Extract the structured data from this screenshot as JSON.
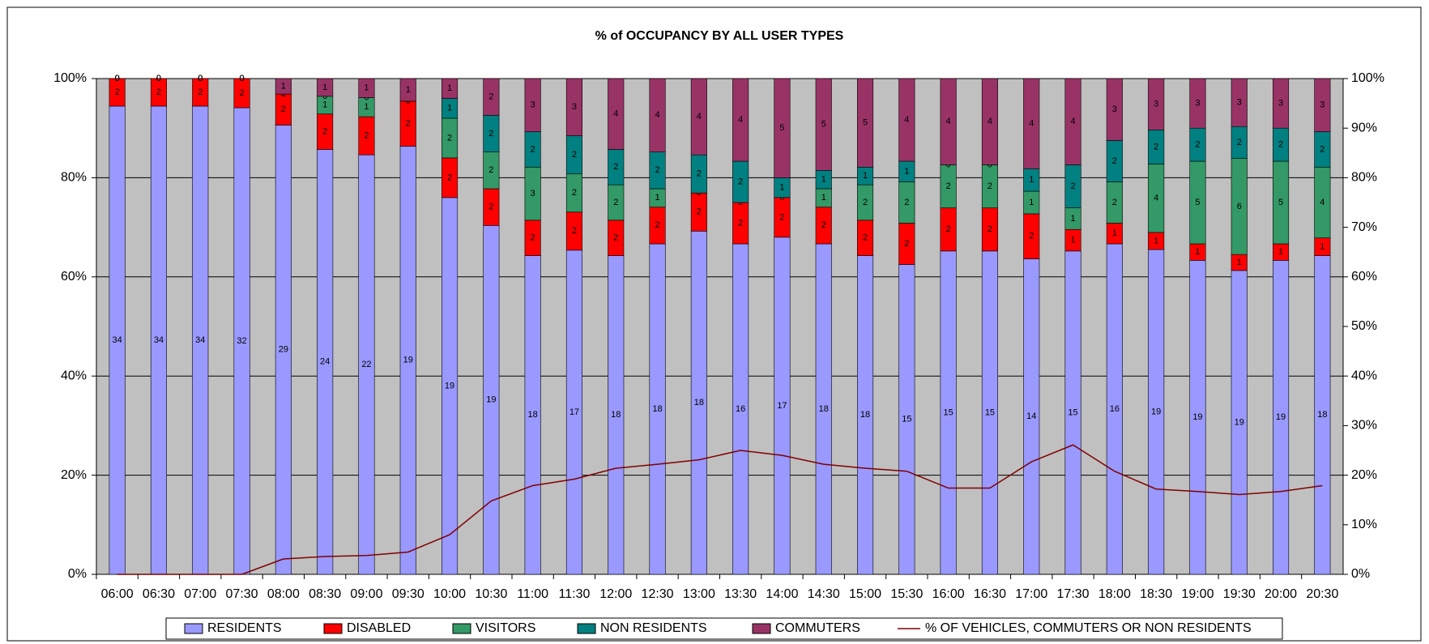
{
  "chart_data": {
    "type": "bar",
    "stacked": "percent",
    "title": "% of OCCUPANCY BY ALL USER TYPES",
    "categories": [
      "06:00",
      "06:30",
      "07:00",
      "07:30",
      "08:00",
      "08:30",
      "09:00",
      "09:30",
      "10:00",
      "10:30",
      "11:00",
      "11:30",
      "12:00",
      "12:30",
      "13:00",
      "13:30",
      "14:00",
      "14:30",
      "15:00",
      "15:30",
      "16:00",
      "16:30",
      "17:00",
      "17:30",
      "18:00",
      "18:30",
      "19:00",
      "19:30",
      "20:00",
      "20:30"
    ],
    "series": [
      {
        "name": "RESIDENTS",
        "color": "#9999ff",
        "values": [
          34,
          34,
          34,
          32,
          29,
          24,
          22,
          19,
          19,
          19,
          18,
          17,
          18,
          18,
          18,
          16,
          17,
          18,
          18,
          15,
          15,
          15,
          14,
          15,
          16,
          19,
          19,
          19,
          19,
          18
        ]
      },
      {
        "name": "DISABLED",
        "color": "#ff0000",
        "values": [
          2,
          2,
          2,
          2,
          2,
          2,
          2,
          2,
          2,
          2,
          2,
          2,
          2,
          2,
          2,
          2,
          2,
          2,
          2,
          2,
          2,
          2,
          2,
          1,
          1,
          1,
          1,
          1,
          1,
          1
        ]
      },
      {
        "name": "VISITORS",
        "color": "#339966",
        "values": [
          0,
          0,
          0,
          0,
          0,
          1,
          1,
          0,
          2,
          2,
          3,
          2,
          2,
          1,
          0,
          0,
          0,
          1,
          2,
          2,
          2,
          2,
          1,
          1,
          2,
          4,
          5,
          6,
          5,
          4
        ]
      },
      {
        "name": "NON RESIDENTS",
        "color": "#008080",
        "values": [
          0,
          0,
          0,
          0,
          0,
          0,
          0,
          0,
          1,
          2,
          2,
          2,
          2,
          2,
          2,
          2,
          1,
          1,
          1,
          1,
          0,
          0,
          1,
          2,
          2,
          2,
          2,
          2,
          2,
          2
        ]
      },
      {
        "name": "COMMUTERS",
        "color": "#993366",
        "values": [
          0,
          0,
          0,
          0,
          1,
          1,
          1,
          1,
          1,
          2,
          3,
          3,
          4,
          4,
          4,
          4,
          5,
          5,
          5,
          4,
          4,
          4,
          4,
          4,
          3,
          3,
          3,
          3,
          3,
          3
        ]
      },
      {
        "name": "% OF VEHICLES, COMMUTERS OR NON RESIDENTS",
        "color": "#800000",
        "axis": "y2",
        "values": [
          0,
          0,
          0,
          0,
          3.1,
          3.6,
          3.8,
          4.5,
          8,
          14.8,
          17.9,
          19.2,
          21.4,
          22.2,
          23.1,
          25,
          24,
          22.2,
          21.4,
          20.8,
          17.4,
          17.4,
          22.7,
          26.1,
          20.8,
          17.2,
          16.7,
          16.1,
          16.7,
          17.9
        ]
      }
    ],
    "ylim": [
      0,
      100
    ],
    "yticks": [
      {
        "value": 0,
        "label": "0%"
      },
      {
        "value": 20,
        "label": "20%"
      },
      {
        "value": 40,
        "label": "40%"
      },
      {
        "value": 60,
        "label": "60%"
      },
      {
        "value": 80,
        "label": "80%"
      },
      {
        "value": 100,
        "label": "100%"
      }
    ],
    "y2lim": [
      0,
      100
    ],
    "y2ticks": [
      {
        "value": 0,
        "label": "0%"
      },
      {
        "value": 10,
        "label": "10%"
      },
      {
        "value": 20,
        "label": "20%"
      },
      {
        "value": 30,
        "label": "30%"
      },
      {
        "value": 40,
        "label": "40%"
      },
      {
        "value": 50,
        "label": "50%"
      },
      {
        "value": 60,
        "label": "60%"
      },
      {
        "value": 70,
        "label": "70%"
      },
      {
        "value": 80,
        "label": "80%"
      },
      {
        "value": 90,
        "label": "90%"
      },
      {
        "value": 100,
        "label": "100%"
      }
    ],
    "grid": true,
    "legend": "bottom",
    "plot_background": "#c0c0c0"
  }
}
